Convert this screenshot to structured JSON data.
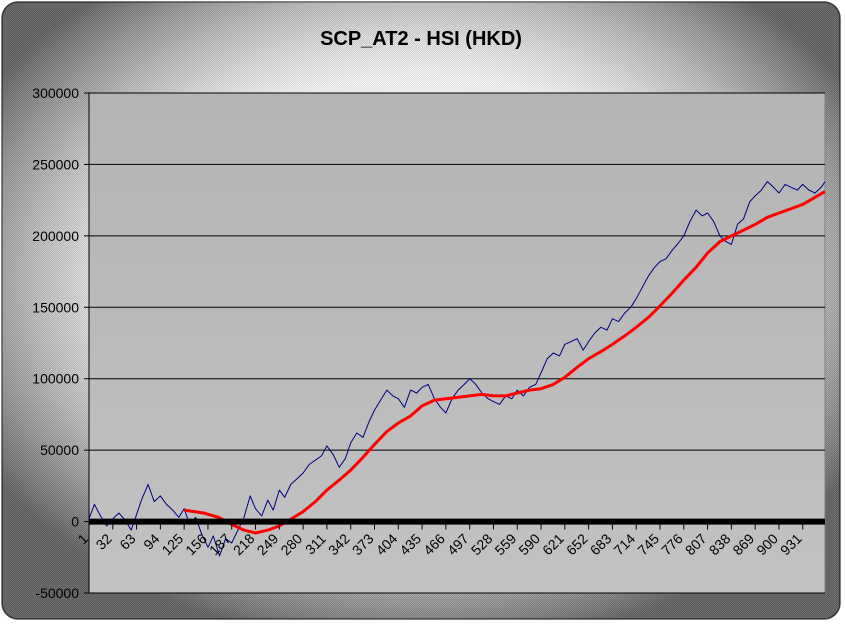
{
  "chart_data": {
    "type": "line",
    "title": "SCP_AT2 - HSI (HKD)",
    "xlabel": "",
    "ylabel": "",
    "x_ticks": [
      "1",
      "32",
      "63",
      "94",
      "125",
      "156",
      "187",
      "218",
      "249",
      "280",
      "311",
      "342",
      "373",
      "404",
      "435",
      "466",
      "497",
      "528",
      "559",
      "590",
      "621",
      "652",
      "683",
      "714",
      "745",
      "776",
      "807",
      "838",
      "869",
      "900",
      "931"
    ],
    "x_range": [
      1,
      960
    ],
    "ylim": [
      -50000,
      300000
    ],
    "y_ticks": [
      -50000,
      0,
      50000,
      100000,
      150000,
      200000,
      250000,
      300000
    ],
    "y_tick_labels": [
      "-50000",
      "0",
      "50000",
      "100000",
      "150000",
      "200000",
      "250000",
      "300000"
    ],
    "grid": "horizontal",
    "legend": "none",
    "series": [
      {
        "color": "#000080",
        "style": "thin",
        "x": [
          1,
          8,
          16,
          24,
          32,
          40,
          48,
          56,
          63,
          70,
          78,
          86,
          94,
          102,
          110,
          118,
          125,
          132,
          140,
          148,
          156,
          163,
          171,
          179,
          187,
          195,
          203,
          211,
          218,
          226,
          234,
          241,
          249,
          256,
          264,
          272,
          280,
          288,
          296,
          304,
          311,
          319,
          327,
          335,
          342,
          350,
          358,
          366,
          373,
          381,
          389,
          397,
          404,
          412,
          420,
          428,
          435,
          443,
          451,
          459,
          466,
          474,
          482,
          490,
          497,
          505,
          513,
          521,
          528,
          536,
          544,
          552,
          559,
          567,
          575,
          583,
          590,
          598,
          606,
          614,
          621,
          629,
          637,
          645,
          652,
          660,
          668,
          676,
          683,
          691,
          699,
          707,
          714,
          722,
          730,
          738,
          745,
          753,
          761,
          769,
          776,
          784,
          792,
          800,
          807,
          815,
          823,
          831,
          838,
          846,
          854,
          862,
          869,
          877,
          885,
          893,
          900,
          908,
          916,
          924,
          931,
          939,
          947,
          955,
          960
        ],
        "y": [
          2000,
          12000,
          4000,
          -3000,
          2000,
          6000,
          1000,
          -6000,
          5000,
          16000,
          26000,
          14000,
          18000,
          12000,
          8000,
          3000,
          9000,
          -2000,
          3000,
          -9000,
          -18000,
          -10000,
          -24000,
          -12000,
          -15000,
          -6000,
          3000,
          18000,
          9000,
          4000,
          15000,
          8000,
          22000,
          17000,
          26000,
          30000,
          34000,
          40000,
          43000,
          46000,
          53000,
          47000,
          38000,
          44000,
          55000,
          62000,
          59000,
          70000,
          78000,
          85000,
          92000,
          88000,
          86000,
          80000,
          92000,
          90000,
          94000,
          96000,
          86000,
          80000,
          76000,
          86000,
          92000,
          96000,
          100000,
          96000,
          90000,
          86000,
          84000,
          82000,
          88000,
          86000,
          92000,
          88000,
          94000,
          96000,
          104000,
          114000,
          118000,
          116000,
          124000,
          126000,
          128000,
          120000,
          126000,
          132000,
          136000,
          134000,
          142000,
          140000,
          146000,
          150000,
          156000,
          164000,
          172000,
          178000,
          182000,
          184000,
          190000,
          195000,
          200000,
          210000,
          218000,
          214000,
          216000,
          210000,
          200000,
          196000,
          194000,
          208000,
          212000,
          224000,
          228000,
          232000,
          238000,
          234000,
          230000,
          236000,
          234000,
          232000,
          236000,
          232000,
          230000,
          234000,
          238000
        ]
      },
      {
        "color": "#ff0000",
        "style": "thick",
        "x": [
          125,
          150,
          170,
          187,
          203,
          218,
          234,
          249,
          265,
          280,
          296,
          311,
          327,
          342,
          358,
          373,
          389,
          404,
          420,
          435,
          451,
          466,
          482,
          497,
          513,
          528,
          544,
          559,
          575,
          590,
          606,
          621,
          637,
          652,
          668,
          683,
          699,
          714,
          730,
          745,
          761,
          776,
          792,
          807,
          823,
          838,
          854,
          869,
          885,
          900,
          916,
          931,
          947,
          960
        ],
        "y": [
          8000,
          6000,
          3000,
          -2000,
          -6000,
          -8000,
          -6000,
          -3000,
          2000,
          7000,
          14000,
          22000,
          29000,
          36000,
          45000,
          54000,
          63000,
          69000,
          74000,
          81000,
          85000,
          86000,
          87000,
          88000,
          89000,
          88000,
          88000,
          90000,
          92000,
          93000,
          96000,
          101000,
          108000,
          114000,
          119000,
          124000,
          130000,
          136000,
          143000,
          151000,
          160000,
          169000,
          178000,
          188000,
          196000,
          200000,
          204000,
          208000,
          213000,
          216000,
          219000,
          222000,
          227000,
          231000
        ]
      }
    ]
  }
}
